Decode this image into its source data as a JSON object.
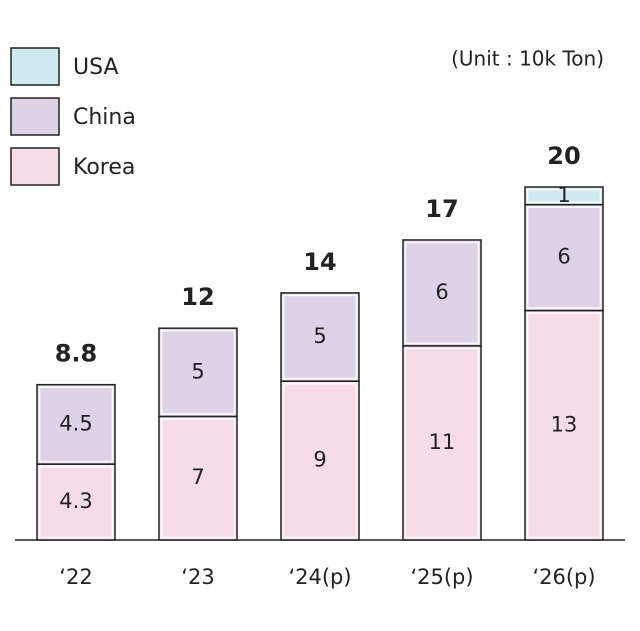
{
  "chart_data": {
    "type": "stacked_bar",
    "unit_note": "(Unit : 10k Ton)",
    "categories": [
      "‘22",
      "‘23",
      "‘24(p)",
      "‘25(p)",
      "‘26(p)"
    ],
    "series": [
      {
        "name": "Korea",
        "color": "#f8dbe9",
        "values": [
          4.3,
          7,
          9,
          11,
          13
        ]
      },
      {
        "name": "China",
        "color": "#ddd2e7",
        "values": [
          4.5,
          5,
          5,
          6,
          6
        ]
      },
      {
        "name": "USA",
        "color": "#cfe9f1",
        "values": [
          null,
          null,
          null,
          null,
          1
        ]
      }
    ],
    "totals": [
      8.8,
      12,
      14,
      17,
      20
    ]
  }
}
